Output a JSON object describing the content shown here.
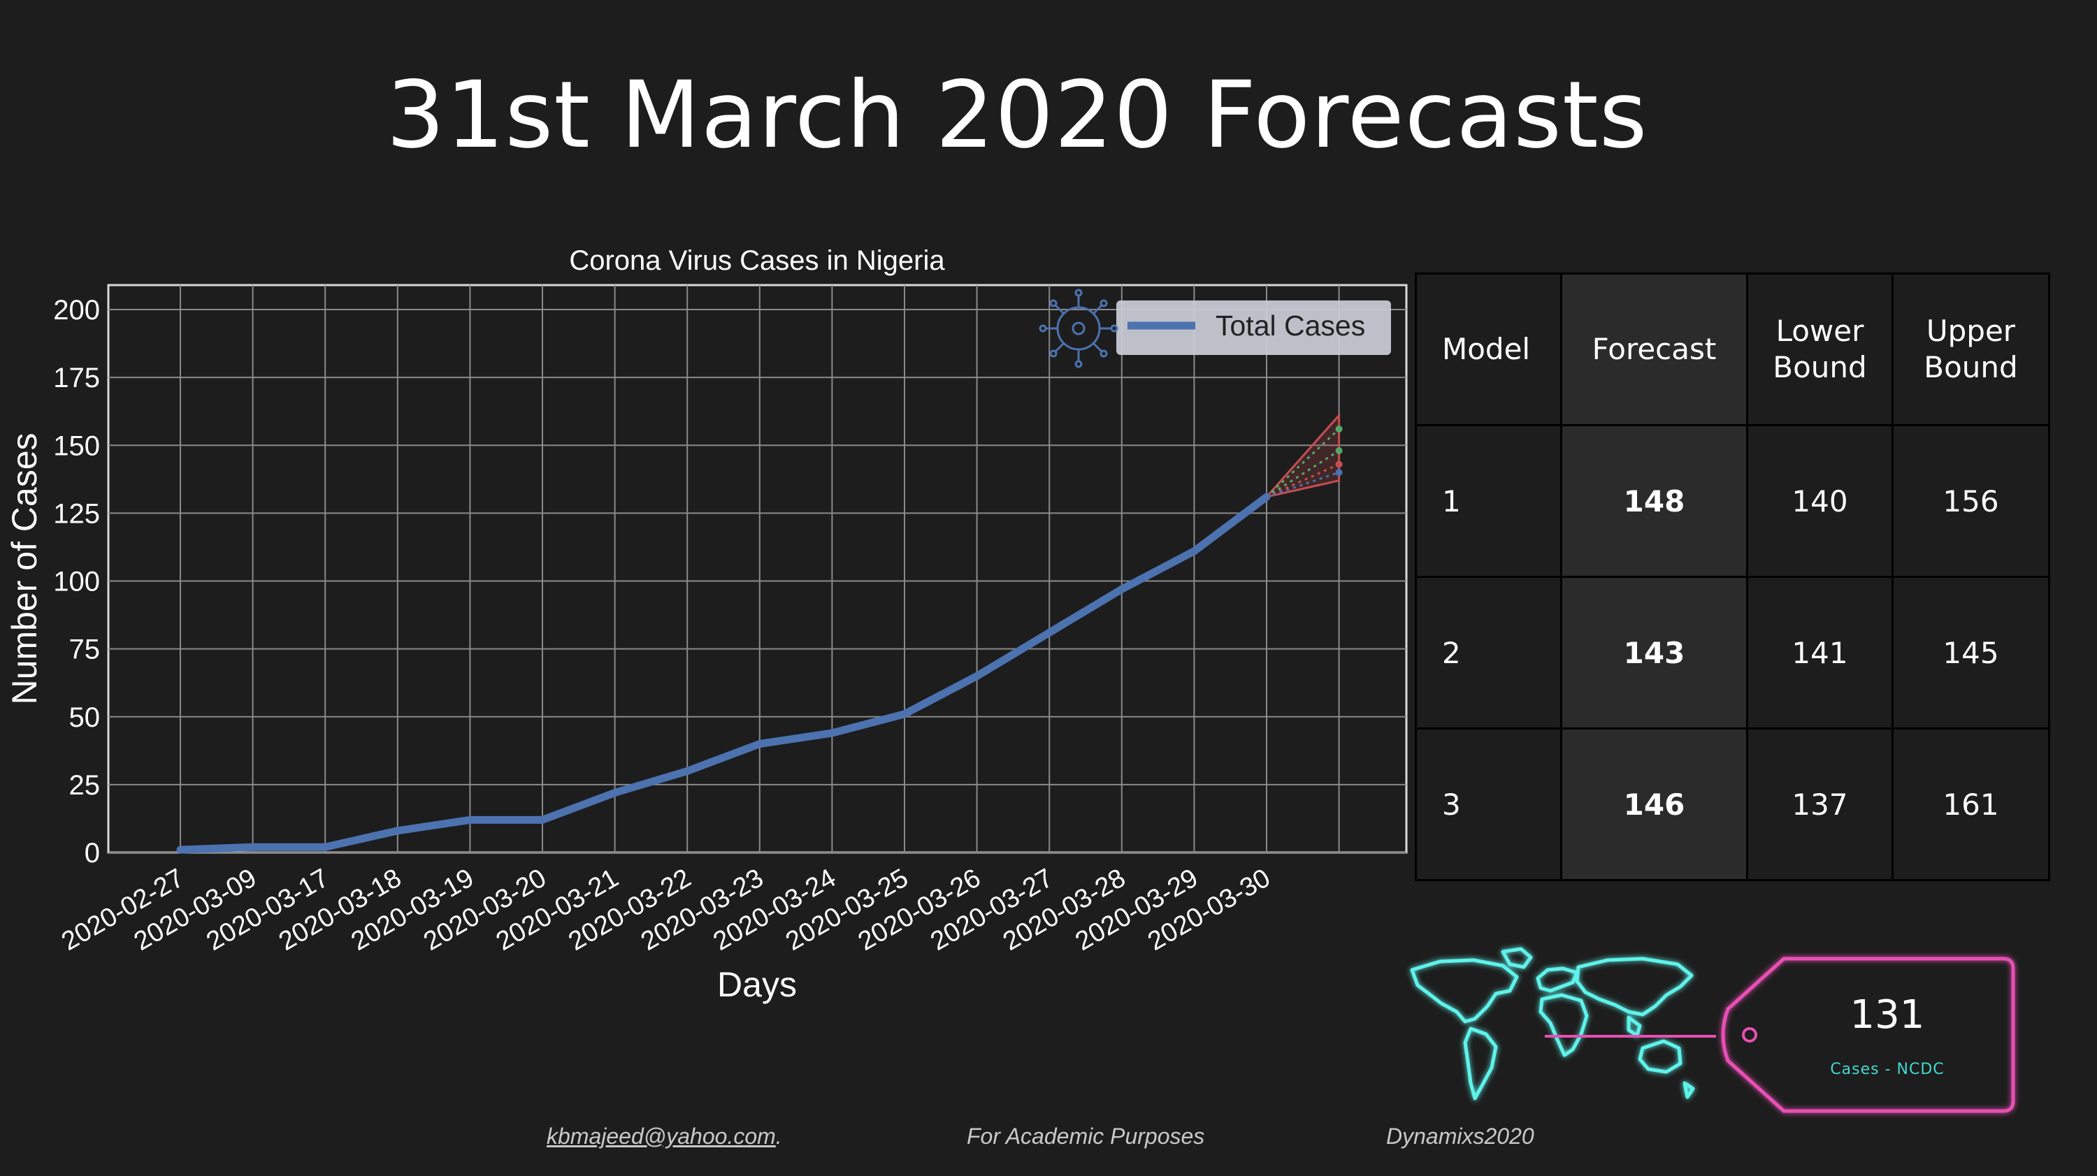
{
  "page": {
    "title": "31st March 2020 Forecasts"
  },
  "chart_data": {
    "type": "line",
    "title": "Corona Virus Cases in Nigeria",
    "xlabel": "Days",
    "ylabel": "Number of Cases",
    "ylim": [
      0,
      210
    ],
    "yticks": [
      0,
      25,
      50,
      75,
      100,
      125,
      150,
      175,
      200
    ],
    "grid": true,
    "legend_position": "top-right",
    "categories": [
      "2020-02-27",
      "2020-03-09",
      "2020-03-17",
      "2020-03-18",
      "2020-03-19",
      "2020-03-20",
      "2020-03-21",
      "2020-03-22",
      "2020-03-23",
      "2020-03-24",
      "2020-03-25",
      "2020-03-26",
      "2020-03-27",
      "2020-03-28",
      "2020-03-29",
      "2020-03-30"
    ],
    "series": [
      {
        "name": "Total Cases",
        "color": "#4c72b0",
        "values": [
          1,
          2,
          2,
          8,
          12,
          12,
          22,
          30,
          40,
          44,
          51,
          65,
          81,
          97,
          111,
          131
        ]
      }
    ],
    "forecast_fan": {
      "color": "#c44e52",
      "origin_value": 131,
      "upper": 161,
      "lower": 137,
      "models": [
        {
          "value": 156,
          "color": "#55a868"
        },
        {
          "value": 148,
          "color": "#55a868"
        },
        {
          "value": 143,
          "color": "#c44e52"
        },
        {
          "value": 140,
          "color": "#4c72b0"
        }
      ]
    }
  },
  "table": {
    "headers": [
      "Model",
      "Forecast",
      "Lower\nBound",
      "Upper\nBound"
    ],
    "rows": [
      [
        "1",
        "148",
        "140",
        "156"
      ],
      [
        "2",
        "143",
        "141",
        "145"
      ],
      [
        "3",
        "146",
        "137",
        "161"
      ]
    ]
  },
  "badge": {
    "value": "131",
    "label": "Cases - NCDC",
    "color_tag": "#e84fb4",
    "color_map": "#5ef2ea",
    "icons": [
      "world-map-icon",
      "price-tag-icon",
      "virus-icon"
    ]
  },
  "footer": {
    "email": "kbmajeed@yahoo.com",
    "email_suffix": ".",
    "note": "For Academic Purposes",
    "brand": "Dynamixs2020"
  }
}
